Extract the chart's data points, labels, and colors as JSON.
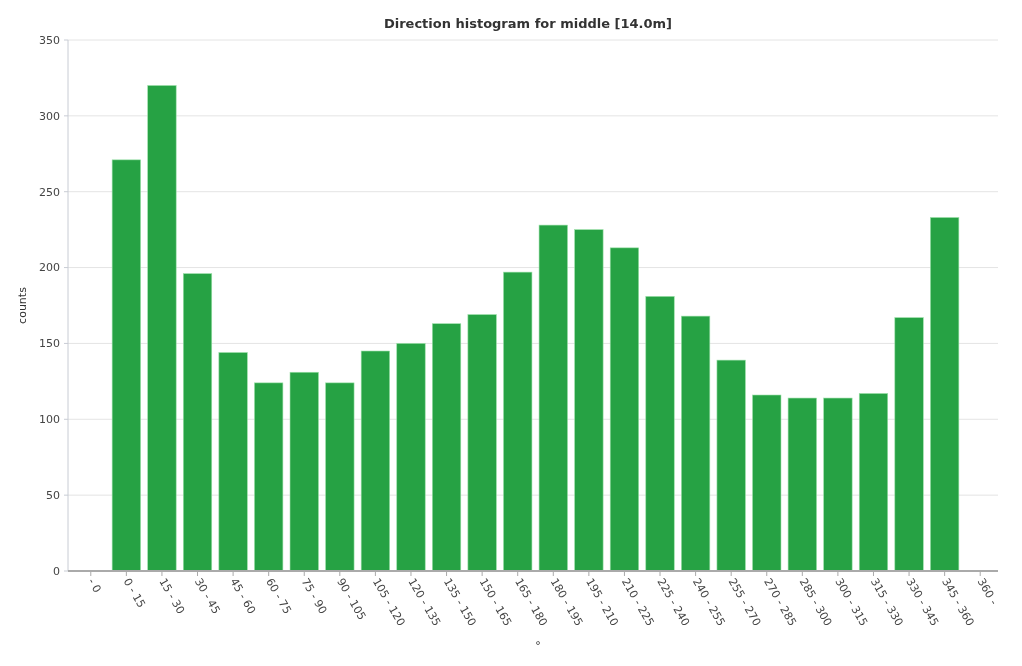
{
  "chart_data": {
    "type": "bar",
    "title": "Direction histogram for middle [14.0m]",
    "xlabel": "°",
    "ylabel": "counts",
    "categories": [
      "- 0",
      "0 - 15",
      "15 - 30",
      "30 - 45",
      "45 - 60",
      "60 - 75",
      "75 - 90",
      "90 - 105",
      "105 - 120",
      "120 - 135",
      "135 - 150",
      "150 - 165",
      "165 - 180",
      "180 - 195",
      "195 - 210",
      "210 - 225",
      "225 - 240",
      "240 - 255",
      "255 - 270",
      "270 - 285",
      "285 - 300",
      "300 - 315",
      "315 - 330",
      "330 - 345",
      "345 - 360",
      "360 -"
    ],
    "values": [
      0,
      271,
      320,
      196,
      144,
      124,
      131,
      124,
      145,
      150,
      163,
      169,
      197,
      228,
      225,
      213,
      181,
      168,
      139,
      116,
      114,
      114,
      117,
      167,
      233,
      0
    ],
    "color": "#26a244",
    "ylim": [
      0,
      350
    ],
    "yticks": [
      0,
      50,
      100,
      150,
      200,
      250,
      300,
      350
    ],
    "grid": "y"
  }
}
